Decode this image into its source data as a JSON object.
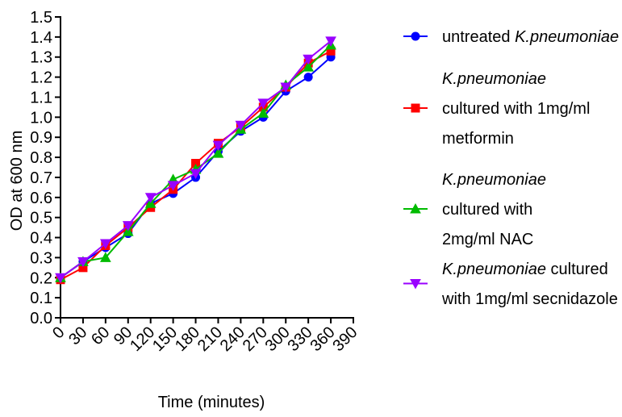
{
  "chart_data": {
    "type": "line",
    "xlabel": "Time (minutes)",
    "ylabel": "OD at 600 nm",
    "xlim": [
      0,
      390
    ],
    "ylim": [
      0.0,
      1.5
    ],
    "xticks": [
      0,
      30,
      60,
      90,
      120,
      150,
      180,
      210,
      240,
      270,
      300,
      330,
      360,
      390
    ],
    "yticks": [
      0.0,
      0.1,
      0.2,
      0.3,
      0.4,
      0.5,
      0.6,
      0.7,
      0.8,
      0.9,
      1.0,
      1.1,
      1.2,
      1.3,
      1.4,
      1.5
    ],
    "x": [
      0,
      30,
      60,
      90,
      120,
      150,
      180,
      210,
      240,
      270,
      300,
      330,
      360
    ],
    "legend_position": "right",
    "grid": false,
    "series": [
      {
        "name": "untreated K.pneumoniae",
        "legend_lines": [
          [
            {
              "text": "untreated ",
              "italic": false
            },
            {
              "text": "K.pneumoniae",
              "italic": true
            }
          ]
        ],
        "color": "#0000ff",
        "marker": "circle",
        "values": [
          0.2,
          0.28,
          0.35,
          0.42,
          0.57,
          0.62,
          0.7,
          0.83,
          0.93,
          1.0,
          1.13,
          1.2,
          1.3
        ]
      },
      {
        "name": "K.pneumoniae cultured with 1mg/ml metformin",
        "legend_lines": [
          [
            {
              "text": "K.pneumoniae",
              "italic": true
            }
          ],
          [
            {
              "text": "cultured with 1mg/ml",
              "italic": false
            }
          ],
          [
            {
              "text": "metformin",
              "italic": false
            }
          ]
        ],
        "color": "#ff0000",
        "marker": "square",
        "values": [
          0.19,
          0.25,
          0.36,
          0.45,
          0.55,
          0.64,
          0.77,
          0.87,
          0.95,
          1.05,
          1.15,
          1.27,
          1.33
        ]
      },
      {
        "name": "K.pneumoniae cultured with 2mg/ml NAC",
        "legend_lines": [
          [
            {
              "text": "K.pneumoniae",
              "italic": true
            }
          ],
          [
            {
              "text": "cultured with",
              "italic": false
            }
          ],
          [
            {
              "text": "2mg/ml NAC",
              "italic": false
            }
          ]
        ],
        "color": "#00bb00",
        "marker": "triangle-up",
        "values": [
          0.2,
          0.28,
          0.3,
          0.43,
          0.57,
          0.69,
          0.74,
          0.82,
          0.94,
          1.02,
          1.16,
          1.25,
          1.36
        ]
      },
      {
        "name": "K.pneumoniae cultured with 1mg/ml secnidazole",
        "legend_lines": [
          [
            {
              "text": "K.pneumoniae",
              "italic": true
            },
            {
              "text": " cultured",
              "italic": false
            }
          ],
          [
            {
              "text": "with 1mg/ml secnidazole",
              "italic": false
            }
          ]
        ],
        "color": "#9900ff",
        "marker": "triangle-down",
        "values": [
          0.2,
          0.28,
          0.37,
          0.46,
          0.6,
          0.66,
          0.72,
          0.86,
          0.96,
          1.07,
          1.15,
          1.29,
          1.38
        ]
      }
    ]
  }
}
